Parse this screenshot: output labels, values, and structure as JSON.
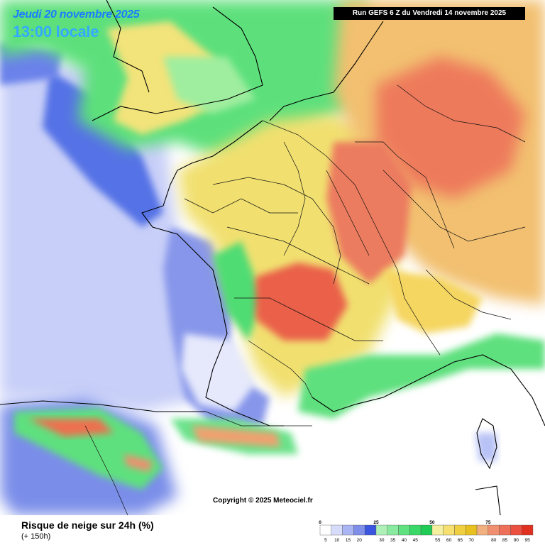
{
  "header": {
    "date": "Jeudi 20 novembre 2025",
    "time": "13:00 locale",
    "run": "Run GEFS 6 Z du Vendredi 14 novembre 2025"
  },
  "copyright": "Copyright © 2025 Meteociel.fr",
  "legend": {
    "title": "Risque de neige sur 24h (%)",
    "subtitle": "(+ 150h)",
    "major_ticks": [
      "0",
      "25",
      "50",
      "75"
    ],
    "minor_ticks": [
      "5",
      "10",
      "15",
      "20",
      "30",
      "35",
      "40",
      "45",
      "55",
      "60",
      "65",
      "70",
      "80",
      "85",
      "90",
      "95"
    ],
    "colors": [
      "#ffffff",
      "#d7dcfb",
      "#aab6f3",
      "#7f8ee9",
      "#3a55e0",
      "#aef0b8",
      "#88eba0",
      "#60e37f",
      "#3ad866",
      "#20cc55",
      "#f5f0a0",
      "#f5e070",
      "#f0d040",
      "#e8c020",
      "#f2b080",
      "#f09070",
      "#ef7058",
      "#eb5040",
      "#e03020"
    ],
    "band_labels": [
      "5",
      "10",
      "15",
      "20",
      "",
      "30",
      "35",
      "40",
      "45",
      "",
      "55",
      "60",
      "65",
      "70",
      "",
      "80",
      "85",
      "90",
      "95"
    ]
  }
}
